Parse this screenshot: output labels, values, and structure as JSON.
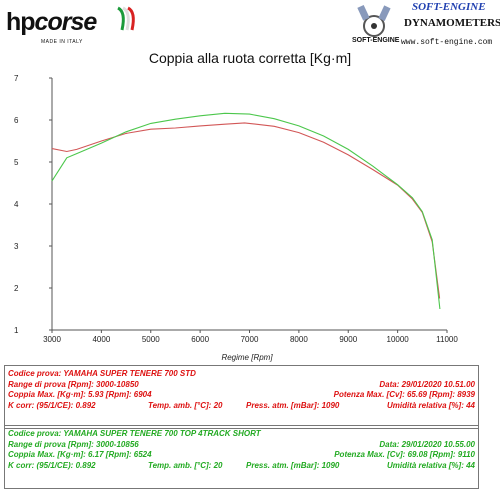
{
  "header": {
    "brand_hp": "hp",
    "brand_corse": "corse",
    "brand_sub": "MADE IN ITALY",
    "se_title": "SOFT-ENGINE",
    "se_dyna": "DYNAMOMETERS",
    "se_small": "SOFT-ENGINE",
    "se_web": "www.soft-engine.com"
  },
  "chart_data": {
    "type": "line",
    "title": "Coppia alla ruota corretta [Kg·m]",
    "xlabel": "Regime [Rpm]",
    "ylabel": "",
    "xlim": [
      3000,
      11000
    ],
    "ylim": [
      1,
      7
    ],
    "xticks": [
      "3000",
      "4000",
      "5000",
      "6000",
      "7000",
      "8000",
      "9000",
      "10000",
      "11000"
    ],
    "yticks": [
      "1",
      "2",
      "3",
      "4",
      "5",
      "6",
      "7"
    ],
    "grid": false,
    "series": [
      {
        "color": "#d25757",
        "x": [
          3000,
          3300,
          3500,
          4000,
          4500,
          5000,
          5500,
          6000,
          6500,
          6900,
          7500,
          8000,
          8500,
          9000,
          9500,
          10000,
          10300,
          10500,
          10700,
          10850
        ],
        "y": [
          5.32,
          5.25,
          5.3,
          5.5,
          5.68,
          5.78,
          5.81,
          5.86,
          5.9,
          5.93,
          5.85,
          5.7,
          5.47,
          5.17,
          4.82,
          4.45,
          4.12,
          3.8,
          3.1,
          1.75
        ]
      },
      {
        "color": "#4cc74c",
        "x": [
          3000,
          3300,
          3500,
          4000,
          4500,
          5000,
          5500,
          6000,
          6500,
          7000,
          7500,
          8000,
          8500,
          9000,
          9500,
          10000,
          10300,
          10500,
          10700,
          10856
        ],
        "y": [
          4.55,
          5.1,
          5.2,
          5.45,
          5.72,
          5.92,
          6.02,
          6.1,
          6.16,
          6.14,
          6.03,
          5.86,
          5.62,
          5.3,
          4.9,
          4.46,
          4.15,
          3.82,
          3.15,
          1.5
        ]
      }
    ]
  },
  "info_boxes": [
    {
      "color": "#dd1111",
      "codice": "Codice prova: YAMAHA SUPER TENERE 700 STD",
      "data": "Data: 29/01/2020  10.51.00",
      "range": "Range di prova [Rpm]: 3000-10850",
      "coppia": "Coppia Max. [Kg·m]: 5.93  [Rpm]: 6904",
      "potenza": "Potenza Max. [Cv]: 65.69  [Rpm]: 8939",
      "kcorr": "K corr: (95/1/CE): 0.892",
      "temp": "Temp. amb. [°C]: 20",
      "press": "Press. atm. [mBar]: 1090",
      "umidita": "Umidità relativa [%]: 44"
    },
    {
      "color": "#22aa22",
      "codice": "Codice prova: YAMAHA SUPER TENERE 700 TOP 4TRACK SHORT",
      "data": "Data: 29/01/2020  10.55.00",
      "range": "Range di prova [Rpm]: 3000-10856",
      "coppia": "Coppia Max. [Kg·m]: 6.17  [Rpm]: 6524",
      "potenza": "Potenza Max. [Cv]: 69.08  [Rpm]: 9110",
      "kcorr": "K corr: (95/1/CE): 0.892",
      "temp": "Temp. amb. [°C]: 20",
      "press": "Press. atm. [mBar]: 1090",
      "umidita": "Umidità relativa [%]: 44"
    }
  ]
}
